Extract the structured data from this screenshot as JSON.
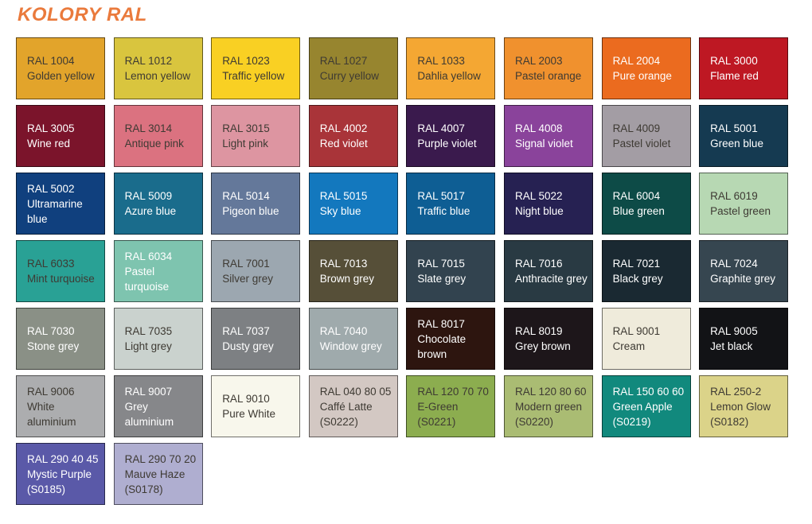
{
  "title": "KOLORY RAL",
  "colors": {
    "background": "#FFFFFF",
    "title": "#EA7A3C",
    "swatch_border": "rgba(0,0,0,0.55)",
    "text_dark": "#3E3A33",
    "text_light": "#FFFFFF"
  },
  "chart_data": {
    "type": "table",
    "title": "KOLORY RAL",
    "columns": 8,
    "legend": "RAL colour swatch grid: each cell shows RAL code, colour name and (where present) an S-code",
    "swatches": [
      {
        "code": "RAL 1004",
        "name": "Golden yellow",
        "suffix": "",
        "bg": "#E2A42B",
        "text": "dark"
      },
      {
        "code": "RAL 1012",
        "name": "Lemon yellow",
        "suffix": "",
        "bg": "#D9C53E",
        "text": "dark"
      },
      {
        "code": "RAL 1023",
        "name": "Traffic yellow",
        "suffix": "",
        "bg": "#F9D023",
        "text": "dark"
      },
      {
        "code": "RAL 1027",
        "name": "Curry yellow",
        "suffix": "",
        "bg": "#97852F",
        "text": "dark"
      },
      {
        "code": "RAL 1033",
        "name": "Dahlia yellow",
        "suffix": "",
        "bg": "#F4A733",
        "text": "dark"
      },
      {
        "code": "RAL 2003",
        "name": "Pastel orange",
        "suffix": "",
        "bg": "#F0912E",
        "text": "dark"
      },
      {
        "code": "RAL 2004",
        "name": "Pure orange",
        "suffix": "",
        "bg": "#EB6B1F",
        "text": "light"
      },
      {
        "code": "RAL 3000",
        "name": "Flame red",
        "suffix": "",
        "bg": "#BE1823",
        "text": "light"
      },
      {
        "code": "RAL 3005",
        "name": "Wine red",
        "suffix": "",
        "bg": "#7B142B",
        "text": "light"
      },
      {
        "code": "RAL 3014",
        "name": "Antique pink",
        "suffix": "",
        "bg": "#DB7280",
        "text": "dark"
      },
      {
        "code": "RAL 3015",
        "name": "Light pink",
        "suffix": "",
        "bg": "#DD95A1",
        "text": "dark"
      },
      {
        "code": "RAL 4002",
        "name": "Red violet",
        "suffix": "",
        "bg": "#A93439",
        "text": "light"
      },
      {
        "code": "RAL 4007",
        "name": "Purple violet",
        "suffix": "",
        "bg": "#3A1A4D",
        "text": "light"
      },
      {
        "code": "RAL 4008",
        "name": "Signal violet",
        "suffix": "",
        "bg": "#8A439B",
        "text": "light"
      },
      {
        "code": "RAL 4009",
        "name": "Pastel violet",
        "suffix": "",
        "bg": "#A39DA4",
        "text": "dark"
      },
      {
        "code": "RAL 5001",
        "name": "Green blue",
        "suffix": "",
        "bg": "#153A51",
        "text": "light"
      },
      {
        "code": "RAL 5002",
        "name": "Ultramarine blue",
        "suffix": "",
        "bg": "#10407E",
        "text": "light"
      },
      {
        "code": "RAL 5009",
        "name": "Azure blue",
        "suffix": "",
        "bg": "#1A6C8C",
        "text": "light"
      },
      {
        "code": "RAL 5014",
        "name": "Pigeon blue",
        "suffix": "",
        "bg": "#64789A",
        "text": "light"
      },
      {
        "code": "RAL 5015",
        "name": "Sky blue",
        "suffix": "",
        "bg": "#1378BE",
        "text": "light"
      },
      {
        "code": "RAL 5017",
        "name": "Traffic blue",
        "suffix": "",
        "bg": "#0E5E94",
        "text": "light"
      },
      {
        "code": "RAL 5022",
        "name": "Night blue",
        "suffix": "",
        "bg": "#262152",
        "text": "light"
      },
      {
        "code": "RAL 6004",
        "name": "Blue green",
        "suffix": "",
        "bg": "#0D4B47",
        "text": "light"
      },
      {
        "code": "RAL 6019",
        "name": "Pastel green",
        "suffix": "",
        "bg": "#B7D8B3",
        "text": "dark"
      },
      {
        "code": "RAL 6033",
        "name": "Mint turquoise",
        "suffix": "",
        "bg": "#29A195",
        "text": "dark"
      },
      {
        "code": "RAL 6034",
        "name": "Pastel turquoise",
        "suffix": "",
        "bg": "#7EC4AF",
        "text": "light"
      },
      {
        "code": "RAL 7001",
        "name": "Silver grey",
        "suffix": "",
        "bg": "#9CA7B0",
        "text": "dark"
      },
      {
        "code": "RAL 7013",
        "name": "Brown grey",
        "suffix": "",
        "bg": "#564F38",
        "text": "light"
      },
      {
        "code": "RAL 7015",
        "name": "Slate grey",
        "suffix": "",
        "bg": "#32434F",
        "text": "light"
      },
      {
        "code": "RAL 7016",
        "name": "Anthracite grey",
        "suffix": "",
        "bg": "#293A43",
        "text": "light"
      },
      {
        "code": "RAL 7021",
        "name": "Black grey",
        "suffix": "",
        "bg": "#1A2932",
        "text": "light"
      },
      {
        "code": "RAL 7024",
        "name": "Graphite grey",
        "suffix": "",
        "bg": "#364650",
        "text": "light"
      },
      {
        "code": "RAL 7030",
        "name": "Stone grey",
        "suffix": "",
        "bg": "#8A9086",
        "text": "light"
      },
      {
        "code": "RAL 7035",
        "name": "Light grey",
        "suffix": "",
        "bg": "#CAD2CE",
        "text": "dark"
      },
      {
        "code": "RAL 7037",
        "name": "Dusty grey",
        "suffix": "",
        "bg": "#7D8083",
        "text": "light"
      },
      {
        "code": "RAL 7040",
        "name": "Window grey",
        "suffix": "",
        "bg": "#9FAAAC",
        "text": "light"
      },
      {
        "code": "RAL 8017",
        "name": "Chocolate brown",
        "suffix": "",
        "bg": "#2D150F",
        "text": "light"
      },
      {
        "code": "RAL 8019",
        "name": "Grey brown",
        "suffix": "",
        "bg": "#1D161A",
        "text": "light"
      },
      {
        "code": "RAL 9001",
        "name": "Cream",
        "suffix": "",
        "bg": "#EFEBDB",
        "text": "dark"
      },
      {
        "code": "RAL 9005",
        "name": "Jet black",
        "suffix": "",
        "bg": "#121316",
        "text": "light"
      },
      {
        "code": "RAL 9006",
        "name": "White aluminium",
        "suffix": "",
        "bg": "#ACADAF",
        "text": "dark"
      },
      {
        "code": "RAL 9007",
        "name": "Grey aluminium",
        "suffix": "",
        "bg": "#86878A",
        "text": "light"
      },
      {
        "code": "RAL 9010",
        "name": "Pure White",
        "suffix": "",
        "bg": "#F8F7EC",
        "text": "dark"
      },
      {
        "code": "RAL 040 80 05",
        "name": "Caffé Latte",
        "suffix": "(S0222)",
        "bg": "#D3C8C3",
        "text": "dark"
      },
      {
        "code": "RAL 120 70 70",
        "name": "E-Green",
        "suffix": "(S0221)",
        "bg": "#8CAD4F",
        "text": "dark"
      },
      {
        "code": "RAL 120 80 60",
        "name": "Modern green",
        "suffix": "(S0220)",
        "bg": "#AABC73",
        "text": "dark"
      },
      {
        "code": "RAL 150 60 60",
        "name": "Green Apple",
        "suffix": "(S0219)",
        "bg": "#11897D",
        "text": "light"
      },
      {
        "code": "RAL 250-2",
        "name": "Lemon Glow",
        "suffix": "(S0182)",
        "bg": "#DBD389",
        "text": "dark"
      },
      {
        "code": "RAL 290 40 45",
        "name": "Mystic Purple",
        "suffix": "(S0185)",
        "bg": "#5A59A8",
        "text": "light"
      },
      {
        "code": "RAL 290 70 20",
        "name": "Mauve Haze",
        "suffix": "(S0178)",
        "bg": "#AFAED0",
        "text": "dark"
      }
    ]
  }
}
